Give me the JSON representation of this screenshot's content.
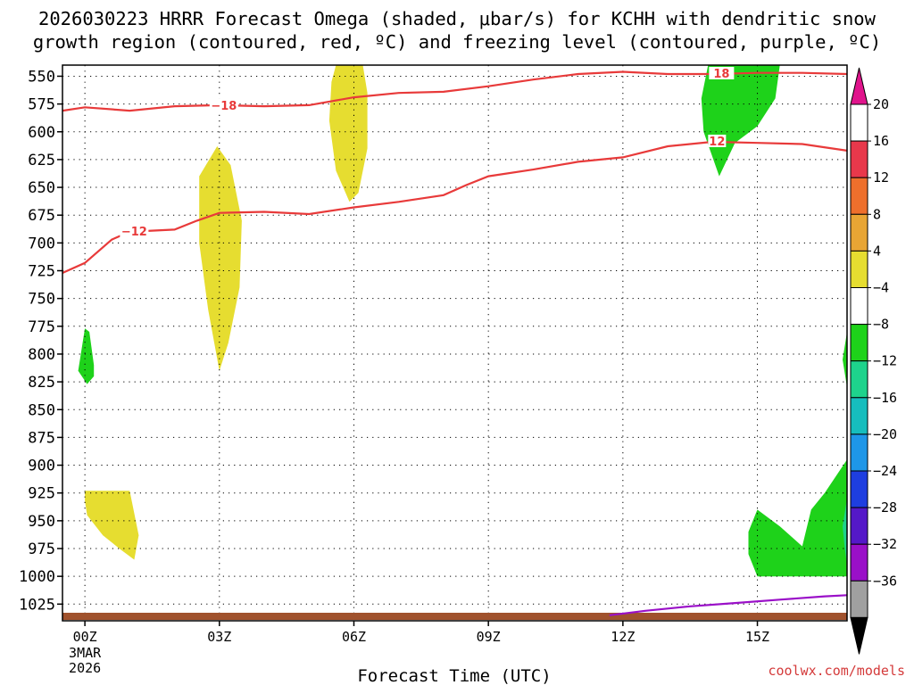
{
  "title": {
    "line1": "2026030223 HRRR Forecast Omega (shaded, μbar/s) for KCHH with dendritic snow",
    "line2": "growth region (contoured, red, ºC) and freezing level (contoured, purple, ºC)"
  },
  "credit": "coolwx.com/models",
  "colors": {
    "axis": "#000000",
    "grid": "#000000",
    "temp_contour": "#e83a3a",
    "freezing_contour": "#9a10c8",
    "ground": "#a0522d"
  },
  "chart_data": {
    "type": "time-height",
    "xlabel": "Forecast Time (UTC)",
    "x_range_hours": [
      -0.5,
      17.0
    ],
    "y_range_hpa": [
      540,
      1040
    ],
    "y_scale": "pressure (reversed)",
    "grid": true,
    "x_ticks": [
      {
        "hour": 0,
        "label": "00Z",
        "sub1": "3MAR",
        "sub2": "2026"
      },
      {
        "hour": 3,
        "label": "03Z"
      },
      {
        "hour": 6,
        "label": "06Z"
      },
      {
        "hour": 9,
        "label": "09Z"
      },
      {
        "hour": 12,
        "label": "12Z"
      },
      {
        "hour": 15,
        "label": "15Z"
      }
    ],
    "y_ticks": [
      550,
      575,
      600,
      625,
      650,
      675,
      700,
      725,
      750,
      775,
      800,
      825,
      850,
      875,
      900,
      925,
      950,
      975,
      1000,
      1025
    ],
    "contours": [
      {
        "name": "-18",
        "label": "−18",
        "color": "#e83a3a",
        "points": [
          [
            -0.5,
            581
          ],
          [
            0,
            578
          ],
          [
            1,
            581
          ],
          [
            2,
            577
          ],
          [
            3,
            576
          ],
          [
            4,
            577
          ],
          [
            5,
            576
          ],
          [
            6,
            569
          ],
          [
            7,
            565
          ],
          [
            8,
            564
          ],
          [
            9,
            559
          ],
          [
            10,
            553
          ],
          [
            11,
            548
          ],
          [
            12,
            546
          ],
          [
            13,
            548
          ],
          [
            14,
            548
          ],
          [
            15,
            547
          ],
          [
            16,
            547
          ],
          [
            17,
            548
          ]
        ],
        "label_pos": [
          3.1,
          577
        ]
      },
      {
        "name": "-12",
        "label": "−12",
        "color": "#e83a3a",
        "points": [
          [
            -0.5,
            727
          ],
          [
            0,
            718
          ],
          [
            0.6,
            697
          ],
          [
            1,
            690
          ],
          [
            2,
            688
          ],
          [
            2.5,
            680
          ],
          [
            3,
            673
          ],
          [
            4,
            672
          ],
          [
            5,
            674
          ],
          [
            6,
            668
          ],
          [
            7,
            663
          ],
          [
            8,
            657
          ],
          [
            8.5,
            648
          ],
          [
            9,
            640
          ],
          [
            10,
            634
          ],
          [
            11,
            627
          ],
          [
            12,
            623
          ],
          [
            13,
            613
          ],
          [
            14,
            609
          ],
          [
            15,
            610
          ],
          [
            16,
            611
          ],
          [
            17,
            617
          ]
        ],
        "label_pos": [
          1.1,
          690
        ]
      },
      {
        "name": "freezing",
        "label": "",
        "color": "#9a10c8",
        "points": [
          [
            11.7,
            1035
          ],
          [
            12.5,
            1031
          ],
          [
            13.5,
            1027
          ],
          [
            14.5,
            1024
          ],
          [
            15.5,
            1021
          ],
          [
            16.5,
            1018
          ],
          [
            17,
            1017
          ]
        ]
      }
    ],
    "omega_regions": [
      {
        "color": "#e6dd30",
        "points": [
          [
            5.6,
            536
          ],
          [
            6.2,
            536
          ],
          [
            6.3,
            565
          ],
          [
            6.3,
            615
          ],
          [
            6.1,
            655
          ],
          [
            5.9,
            663
          ],
          [
            5.6,
            635
          ],
          [
            5.45,
            590
          ],
          [
            5.5,
            555
          ]
        ]
      },
      {
        "color": "#e6dd30",
        "points": [
          [
            2.95,
            613
          ],
          [
            3.25,
            630
          ],
          [
            3.5,
            680
          ],
          [
            3.45,
            740
          ],
          [
            3.2,
            790
          ],
          [
            3.0,
            815
          ],
          [
            2.75,
            760
          ],
          [
            2.55,
            700
          ],
          [
            2.55,
            640
          ]
        ]
      },
      {
        "color": "#e6dd30",
        "points": [
          [
            0,
            923
          ],
          [
            1,
            923
          ],
          [
            1.2,
            963
          ],
          [
            1.1,
            985
          ],
          [
            0.8,
            976
          ],
          [
            0.4,
            963
          ],
          [
            0.05,
            945
          ],
          [
            0,
            932
          ]
        ]
      },
      {
        "color": "#1ed21a",
        "points": [
          [
            0,
            777
          ],
          [
            0.1,
            780
          ],
          [
            0.2,
            810
          ],
          [
            0.2,
            820
          ],
          [
            0.05,
            827
          ],
          [
            -0.15,
            815
          ]
        ]
      },
      {
        "color": "#1ed21a",
        "points": [
          [
            13.9,
            536
          ],
          [
            15.5,
            536
          ],
          [
            15.4,
            570
          ],
          [
            15.0,
            595
          ],
          [
            14.5,
            610
          ],
          [
            14.15,
            640
          ],
          [
            13.8,
            600
          ],
          [
            13.75,
            570
          ]
        ]
      },
      {
        "color": "#1ed21a",
        "points": [
          [
            17,
            780
          ],
          [
            17.1,
            780
          ],
          [
            17.1,
            830
          ],
          [
            17,
            830
          ],
          [
            16.9,
            805
          ]
        ]
      },
      {
        "color": "#1ed21a",
        "points": [
          [
            17.1,
            883
          ],
          [
            17.1,
            1000
          ],
          [
            15,
            1000
          ],
          [
            14.8,
            980
          ],
          [
            14.8,
            960
          ],
          [
            15.0,
            940
          ],
          [
            15.5,
            955
          ],
          [
            16.0,
            973
          ],
          [
            16.2,
            940
          ],
          [
            16.5,
            925
          ],
          [
            17.0,
            895
          ]
        ]
      },
      {
        "color": "#1ed38c",
        "points": [
          [
            16.9,
            955
          ],
          [
            17.1,
            930
          ],
          [
            17.1,
            990
          ],
          [
            16.95,
            975
          ]
        ]
      }
    ],
    "colorbar": {
      "ticks": [
        "20",
        "16",
        "12",
        "8",
        "4",
        "−4",
        "−8",
        "−12",
        "−16",
        "−20",
        "−24",
        "−28",
        "−32",
        "−36"
      ],
      "colors": [
        "#ffffff",
        "#e8384b",
        "#ee6f2c",
        "#e8a534",
        "#e6dd30",
        "#ffffff",
        "#1ed21a",
        "#1ed38c",
        "#16bdbd",
        "#1e96e8",
        "#1e3ee0",
        "#5418c8",
        "#9a10c8",
        "#a0a0a0"
      ],
      "top_arrow_color": "#e0148c",
      "bottom_arrow_color": "#000000"
    }
  }
}
